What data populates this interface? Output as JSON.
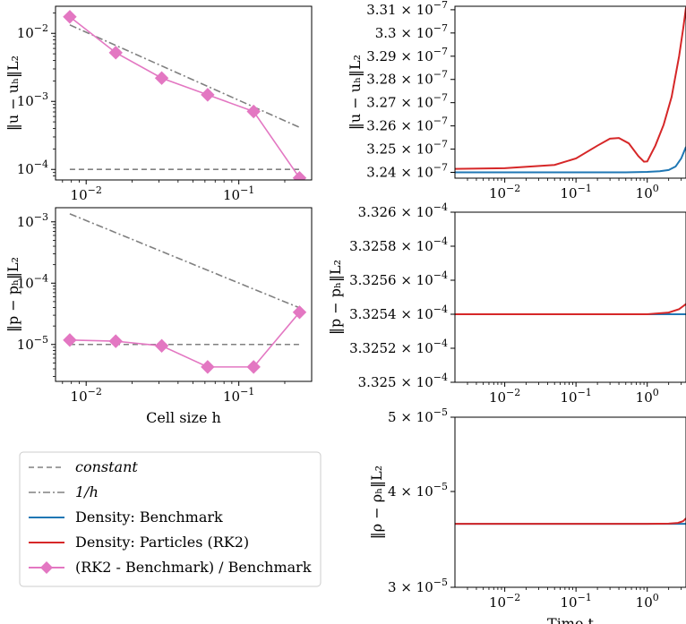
{
  "colors": {
    "constant": "#808080",
    "inv_h": "#808080",
    "benchmark": "#1f77b4",
    "particles": "#d62728",
    "ratio": "#e377c2"
  },
  "legend": {
    "items": [
      {
        "label": "constant",
        "style": "dashed",
        "color": "#808080",
        "italic": true
      },
      {
        "label": "1/h",
        "style": "dashdot",
        "color": "#808080",
        "italic": true
      },
      {
        "label": "Density: Benchmark",
        "style": "solid",
        "color": "#1f77b4"
      },
      {
        "label": "Density: Particles (RK2)",
        "style": "solid",
        "color": "#d62728"
      },
      {
        "label": "(RK2 - Benchmark) / Benchmark",
        "style": "diamond",
        "color": "#e377c2"
      }
    ]
  },
  "chart_data": [
    {
      "id": "u-vs-h",
      "type": "line",
      "xscale": "log",
      "yscale": "log",
      "xlim": [
        0.0063,
        0.3
      ],
      "ylim": [
        7e-05,
        0.025
      ],
      "xticks": [
        {
          "v": 0.01,
          "b": "10",
          "e": "−2"
        },
        {
          "v": 0.1,
          "b": "10",
          "e": "−1"
        }
      ],
      "yticks": [
        {
          "v": 0.0001,
          "b": "10",
          "e": "−4"
        },
        {
          "v": 0.001,
          "b": "10",
          "e": "−3"
        },
        {
          "v": 0.01,
          "b": "10",
          "e": "−2"
        }
      ],
      "ylabel": "‖u − uₕ‖L₂",
      "xlabel": "",
      "series": [
        {
          "name": "constant",
          "style": "dashed",
          "color": "#808080",
          "x": [
            0.0078125,
            0.25
          ],
          "y": [
            0.0001,
            0.0001
          ]
        },
        {
          "name": "1/h",
          "style": "dashdot",
          "color": "#808080",
          "x": [
            0.0078125,
            0.25
          ],
          "y": [
            0.0133,
            0.000415
          ]
        },
        {
          "name": "(RK2 - Benchmark) / Benchmark",
          "style": "diamond",
          "color": "#e377c2",
          "x": [
            0.0078125,
            0.015625,
            0.03125,
            0.0625,
            0.125,
            0.25
          ],
          "y": [
            0.0175,
            0.0052,
            0.0022,
            0.00125,
            0.00071,
            7.5e-05
          ]
        }
      ]
    },
    {
      "id": "p-vs-h",
      "type": "line",
      "xscale": "log",
      "yscale": "log",
      "xlim": [
        0.0063,
        0.3
      ],
      "ylim": [
        2.5e-06,
        0.0017
      ],
      "xticks": [
        {
          "v": 0.01,
          "b": "10",
          "e": "−2"
        },
        {
          "v": 0.1,
          "b": "10",
          "e": "−1"
        }
      ],
      "yticks": [
        {
          "v": 1e-05,
          "b": "10",
          "e": "−5"
        },
        {
          "v": 0.0001,
          "b": "10",
          "e": "−4"
        },
        {
          "v": 0.001,
          "b": "10",
          "e": "−3"
        }
      ],
      "ylabel": "‖p − pₕ‖L₂",
      "xlabel": "Cell size h",
      "series": [
        {
          "name": "constant",
          "style": "dashed",
          "color": "#808080",
          "x": [
            0.0078125,
            0.25
          ],
          "y": [
            1e-05,
            1e-05
          ]
        },
        {
          "name": "1/h",
          "style": "dashdot",
          "color": "#808080",
          "x": [
            0.0078125,
            0.25
          ],
          "y": [
            0.00135,
            3.95e-05
          ]
        },
        {
          "name": "(RK2 - Benchmark) / Benchmark",
          "style": "diamond",
          "color": "#e377c2",
          "x": [
            0.0078125,
            0.015625,
            0.03125,
            0.0625,
            0.125,
            0.25
          ],
          "y": [
            1.18e-05,
            1.13e-05,
            9.5e-06,
            4.3e-06,
            4.3e-06,
            3.35e-05
          ]
        }
      ]
    },
    {
      "id": "u-vs-t",
      "type": "line",
      "xscale": "log",
      "yscale": "linear",
      "xlim": [
        0.002,
        3.5
      ],
      "ylim": [
        3.2375e-07,
        3.3115e-07
      ],
      "xticks": [
        {
          "v": 0.01,
          "b": "10",
          "e": "−2"
        },
        {
          "v": 0.1,
          "b": "10",
          "e": "−1"
        },
        {
          "v": 1,
          "b": "10",
          "e": "0"
        }
      ],
      "yticks": [
        {
          "v": 3.24e-07,
          "m": "3.24",
          "e": "−7"
        },
        {
          "v": 3.25e-07,
          "m": "3.25",
          "e": "−7"
        },
        {
          "v": 3.26e-07,
          "m": "3.26",
          "e": "−7"
        },
        {
          "v": 3.27e-07,
          "m": "3.27",
          "e": "−7"
        },
        {
          "v": 3.28e-07,
          "m": "3.28",
          "e": "−7"
        },
        {
          "v": 3.29e-07,
          "m": "3.29",
          "e": "−7"
        },
        {
          "v": 3.3e-07,
          "m": "3.3",
          "e": "−7"
        },
        {
          "v": 3.31e-07,
          "m": "3.31",
          "e": "−7"
        }
      ],
      "ylabel": "‖u − uₕ‖L₂",
      "xlabel": "",
      "series": [
        {
          "name": "Density: Benchmark",
          "style": "solid",
          "color": "#1f77b4",
          "x": [
            0.002,
            0.01,
            0.1,
            0.5,
            1,
            1.5,
            2,
            2.5,
            3,
            3.5
          ],
          "y": [
            3.24e-07,
            3.24e-07,
            3.24e-07,
            3.24e-07,
            3.2402e-07,
            3.2405e-07,
            3.241e-07,
            3.2425e-07,
            3.246e-07,
            3.251e-07
          ]
        },
        {
          "name": "Density: Particles (RK2)",
          "style": "solid",
          "color": "#d62728",
          "x": [
            0.002,
            0.01,
            0.05,
            0.1,
            0.2,
            0.3,
            0.4,
            0.55,
            0.75,
            0.9,
            1.0,
            1.3,
            1.7,
            2.2,
            2.8,
            3.2,
            3.5
          ],
          "y": [
            3.2415e-07,
            3.2418e-07,
            3.2432e-07,
            3.246e-07,
            3.2515e-07,
            3.2545e-07,
            3.2548e-07,
            3.2525e-07,
            3.247e-07,
            3.2446e-07,
            3.2447e-07,
            3.2515e-07,
            3.2605e-07,
            3.2725e-07,
            3.29e-07,
            3.302e-07,
            3.311e-07
          ]
        }
      ]
    },
    {
      "id": "p-vs-t",
      "type": "line",
      "xscale": "log",
      "yscale": "linear",
      "xlim": [
        0.002,
        3.5
      ],
      "ylim": [
        0.0003325,
        0.0003326
      ],
      "xticks": [
        {
          "v": 0.01,
          "b": "10",
          "e": "−2"
        },
        {
          "v": 0.1,
          "b": "10",
          "e": "−1"
        },
        {
          "v": 1,
          "b": "10",
          "e": "0"
        }
      ],
      "yticks": [
        {
          "v": 0.0003325,
          "m": "3.325",
          "e": "−4"
        },
        {
          "v": 0.00033252,
          "m": "3.3252",
          "e": "−4"
        },
        {
          "v": 0.00033254,
          "m": "3.3254",
          "e": "−4"
        },
        {
          "v": 0.00033256,
          "m": "3.3256",
          "e": "−4"
        },
        {
          "v": 0.00033258,
          "m": "3.3258",
          "e": "−4"
        },
        {
          "v": 0.0003326,
          "m": "3.326",
          "e": "−4"
        }
      ],
      "ylabel": "‖p − pₕ‖L₂",
      "xlabel": "",
      "series": [
        {
          "name": "Density: Benchmark",
          "style": "solid",
          "color": "#1f77b4",
          "x": [
            0.002,
            0.1,
            1,
            3.5
          ],
          "y": [
            0.00033254,
            0.00033254,
            0.00033254,
            0.00033254
          ]
        },
        {
          "name": "Density: Particles (RK2)",
          "style": "solid",
          "color": "#d62728",
          "x": [
            0.002,
            0.1,
            1,
            2,
            2.8,
            3.5
          ],
          "y": [
            0.00033254,
            0.00033254,
            0.00033254,
            0.000332541,
            0.000332543,
            0.000332546
          ]
        }
      ]
    },
    {
      "id": "rho-vs-t",
      "type": "line",
      "xscale": "log",
      "yscale": "log",
      "xlim": [
        0.002,
        3.5
      ],
      "ylim": [
        3e-05,
        5e-05
      ],
      "xticks": [
        {
          "v": 0.01,
          "b": "10",
          "e": "−2"
        },
        {
          "v": 0.1,
          "b": "10",
          "e": "−1"
        },
        {
          "v": 1,
          "b": "10",
          "e": "0"
        }
      ],
      "yticks": [
        {
          "v": 3e-05,
          "m": "3",
          "e": "−5"
        },
        {
          "v": 4e-05,
          "m": "4",
          "e": "−5"
        },
        {
          "v": 5e-05,
          "m": "5",
          "e": "−5"
        }
      ],
      "ylabel": "‖ρ − ρₕ‖L₂",
      "xlabel": "Time t",
      "series": [
        {
          "name": "Density: Benchmark",
          "style": "solid",
          "color": "#1f77b4",
          "x": [
            0.002,
            0.1,
            1,
            3.5
          ],
          "y": [
            3.63e-05,
            3.63e-05,
            3.63e-05,
            3.63e-05
          ]
        },
        {
          "name": "Density: Particles (RK2)",
          "style": "solid",
          "color": "#d62728",
          "x": [
            0.002,
            0.1,
            1,
            2,
            2.7,
            3.2,
            3.5
          ],
          "y": [
            3.63e-05,
            3.63e-05,
            3.63e-05,
            3.632e-05,
            3.64e-05,
            3.66e-05,
            3.69e-05
          ]
        }
      ]
    }
  ]
}
